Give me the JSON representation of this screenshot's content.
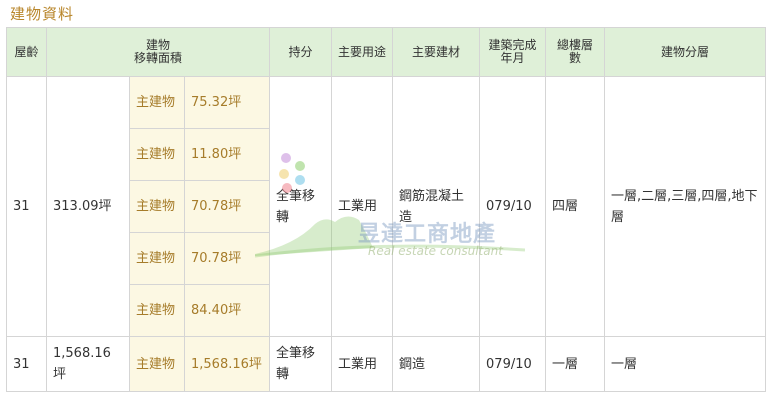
{
  "section_title": "建物資料",
  "headers": {
    "age": "屋齡",
    "area_line1": "建物",
    "area_line2": "移轉面積",
    "share": "持分",
    "usage": "主要用途",
    "material": "主要建材",
    "completed": "建築完成年月",
    "floors": "總樓層數",
    "floor_detail": "建物分層"
  },
  "buildings": [
    {
      "age": "31",
      "total_area": "313.09坪",
      "share": "全筆移轉",
      "usage": "工業用",
      "material": "鋼筋混凝土造",
      "completed": "079/10",
      "floors": "四層",
      "floor_detail": "一層,二層,三層,四層,地下層",
      "areas": [
        {
          "label": "主建物",
          "value": "75.32坪"
        },
        {
          "label": "主建物",
          "value": "11.80坪"
        },
        {
          "label": "主建物",
          "value": "70.78坪"
        },
        {
          "label": "主建物",
          "value": "70.78坪"
        },
        {
          "label": "主建物",
          "value": "84.40坪"
        }
      ]
    },
    {
      "age": "31",
      "total_area": "1,568.16坪",
      "share": "全筆移轉",
      "usage": "工業用",
      "material": "鋼造",
      "completed": "079/10",
      "floors": "一層",
      "floor_detail": "一層",
      "areas": [
        {
          "label": "主建物",
          "value": "1,568.16坪"
        }
      ]
    }
  ],
  "watermark": {
    "name": "昱達工商地產",
    "sub": "Real estate consultant"
  },
  "colors": {
    "header_bg": "#dff0d8",
    "area_bg": "#fcf8e3",
    "area_text": "#a67c2a",
    "title_text": "#b8862b"
  }
}
